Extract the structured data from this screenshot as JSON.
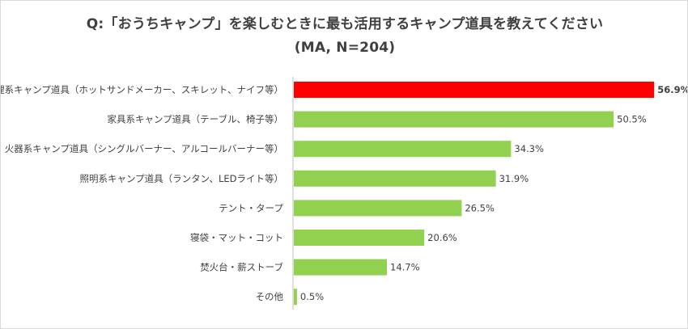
{
  "chart_data": {
    "type": "bar",
    "orientation": "horizontal",
    "title": "Q:「おうちキャンプ」を楽しむときに最も活用するキャンプ道具を教えてください",
    "subtitle": "(MA, N=204)",
    "xlabel": "",
    "ylabel": "",
    "xlim": [
      0,
      57
    ],
    "grid": false,
    "categories": [
      "調理系キャンプ道具（ホットサンドメーカー、スキレット、ナイフ等）",
      "家具系キャンプ道具（テーブル、椅子等）",
      "火器系キャンプ道具（シングルバーナー、アルコールバーナー等）",
      "照明系キャンプ道具（ランタン、LEDライト等）",
      "テント・タープ",
      "寝袋・マット・コット",
      "焚火台・薪ストーブ",
      "その他"
    ],
    "values": [
      56.9,
      50.5,
      34.3,
      31.9,
      26.5,
      20.6,
      14.7,
      0.5
    ],
    "value_labels": [
      "56.9%",
      "50.5%",
      "34.3%",
      "31.9%",
      "26.5%",
      "20.6%",
      "14.7%",
      "0.5%"
    ],
    "colors": {
      "highlight": "#ff0000",
      "default": "#92d050",
      "axis": "#bfbfbf",
      "text": "#404040"
    },
    "highlight_index": 0
  }
}
